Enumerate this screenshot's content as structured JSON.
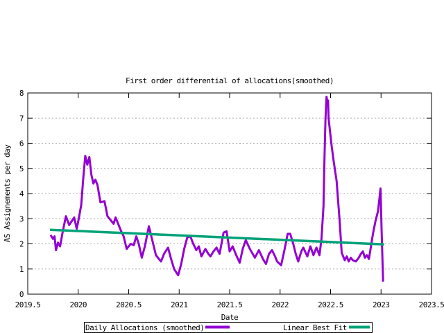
{
  "window": {
    "background": "#ffffff"
  },
  "colors": {
    "daily_allocations": "#9400d3",
    "linear_fit": "#00a278",
    "grid": "#a8a8a8",
    "border": "#000000",
    "text": "#000000"
  },
  "legend": {
    "items": [
      {
        "label": "Daily Allocations (smoothed)",
        "color": "#9400d3"
      },
      {
        "label": "Linear Best Fit",
        "color": "#00a278"
      }
    ]
  },
  "chart_data": {
    "type": "line",
    "title": "First order differential of allocations(smoothed)",
    "xlabel": "Date",
    "ylabel": "AS Assignements per day",
    "xlim": [
      2019.5,
      2023.5
    ],
    "ylim": [
      0,
      8
    ],
    "x_ticks": [
      2019.5,
      2020,
      2020.5,
      2021,
      2021.5,
      2022,
      2022.5,
      2023,
      2023.5
    ],
    "x_tick_labels": [
      "2019.5",
      "2020",
      "2020.5",
      "2021",
      "2021.5",
      "2022",
      "2022.5",
      "2023",
      "2023.5"
    ],
    "y_ticks": [
      0,
      1,
      2,
      3,
      4,
      5,
      6,
      7,
      8
    ],
    "y_tick_labels": [
      "0",
      "1",
      "2",
      "3",
      "4",
      "5",
      "6",
      "7",
      "8"
    ],
    "grid": "horizontal dotted gridlines at y=1..7, mirrored inward ticks on all borders",
    "legend_position": "boxed legend centered below x-axis label",
    "series": [
      {
        "name": "Daily Allocations (smoothed)",
        "color": "#9400d3",
        "points": [
          [
            2019.727,
            2.35
          ],
          [
            2019.75,
            2.2
          ],
          [
            2019.765,
            2.3
          ],
          [
            2019.78,
            1.75
          ],
          [
            2019.8,
            2.05
          ],
          [
            2019.82,
            1.9
          ],
          [
            2019.845,
            2.45
          ],
          [
            2019.878,
            3.1
          ],
          [
            2019.91,
            2.75
          ],
          [
            2019.935,
            2.9
          ],
          [
            2019.96,
            3.05
          ],
          [
            2019.985,
            2.6
          ],
          [
            2020.005,
            3.0
          ],
          [
            2020.03,
            3.55
          ],
          [
            2020.05,
            4.6
          ],
          [
            2020.07,
            5.5
          ],
          [
            2020.09,
            5.15
          ],
          [
            2020.11,
            5.45
          ],
          [
            2020.13,
            4.75
          ],
          [
            2020.15,
            4.4
          ],
          [
            2020.17,
            4.55
          ],
          [
            2020.19,
            4.35
          ],
          [
            2020.22,
            3.65
          ],
          [
            2020.26,
            3.7
          ],
          [
            2020.29,
            3.1
          ],
          [
            2020.32,
            2.95
          ],
          [
            2020.35,
            2.8
          ],
          [
            2020.37,
            3.05
          ],
          [
            2020.4,
            2.75
          ],
          [
            2020.42,
            2.55
          ],
          [
            2020.45,
            2.3
          ],
          [
            2020.48,
            1.8
          ],
          [
            2020.52,
            2.0
          ],
          [
            2020.55,
            1.95
          ],
          [
            2020.575,
            2.3
          ],
          [
            2020.6,
            2.0
          ],
          [
            2020.63,
            1.45
          ],
          [
            2020.66,
            1.9
          ],
          [
            2020.7,
            2.7
          ],
          [
            2020.73,
            2.2
          ],
          [
            2020.77,
            1.55
          ],
          [
            2020.8,
            1.4
          ],
          [
            2020.82,
            1.3
          ],
          [
            2020.85,
            1.6
          ],
          [
            2020.89,
            1.85
          ],
          [
            2020.92,
            1.4
          ],
          [
            2020.95,
            1.0
          ],
          [
            2020.99,
            0.75
          ],
          [
            2021.02,
            1.2
          ],
          [
            2021.05,
            1.8
          ],
          [
            2021.08,
            2.25
          ],
          [
            2021.11,
            2.3
          ],
          [
            2021.14,
            2.0
          ],
          [
            2021.17,
            1.75
          ],
          [
            2021.195,
            1.9
          ],
          [
            2021.22,
            1.5
          ],
          [
            2021.26,
            1.8
          ],
          [
            2021.29,
            1.6
          ],
          [
            2021.31,
            1.5
          ],
          [
            2021.34,
            1.7
          ],
          [
            2021.37,
            1.85
          ],
          [
            2021.4,
            1.6
          ],
          [
            2021.44,
            2.45
          ],
          [
            2021.47,
            2.5
          ],
          [
            2021.5,
            1.7
          ],
          [
            2021.53,
            1.9
          ],
          [
            2021.56,
            1.6
          ],
          [
            2021.6,
            1.25
          ],
          [
            2021.63,
            1.8
          ],
          [
            2021.66,
            2.15
          ],
          [
            2021.7,
            1.8
          ],
          [
            2021.75,
            1.45
          ],
          [
            2021.79,
            1.75
          ],
          [
            2021.83,
            1.4
          ],
          [
            2021.86,
            1.2
          ],
          [
            2021.89,
            1.6
          ],
          [
            2021.92,
            1.75
          ],
          [
            2021.95,
            1.5
          ],
          [
            2021.97,
            1.3
          ],
          [
            2022.01,
            1.15
          ],
          [
            2022.04,
            1.7
          ],
          [
            2022.075,
            2.4
          ],
          [
            2022.1,
            2.4
          ],
          [
            2022.13,
            2.0
          ],
          [
            2022.155,
            1.6
          ],
          [
            2022.18,
            1.3
          ],
          [
            2022.21,
            1.7
          ],
          [
            2022.23,
            1.85
          ],
          [
            2022.27,
            1.5
          ],
          [
            2022.3,
            1.9
          ],
          [
            2022.33,
            1.55
          ],
          [
            2022.36,
            1.85
          ],
          [
            2022.39,
            1.55
          ],
          [
            2022.41,
            2.2
          ],
          [
            2022.43,
            3.5
          ],
          [
            2022.44,
            5.5
          ],
          [
            2022.45,
            7.0
          ],
          [
            2022.46,
            7.85
          ],
          [
            2022.47,
            7.6
          ],
          [
            2022.475,
            7.7
          ],
          [
            2022.48,
            7.0
          ],
          [
            2022.49,
            6.65
          ],
          [
            2022.51,
            5.9
          ],
          [
            2022.53,
            5.3
          ],
          [
            2022.56,
            4.5
          ],
          [
            2022.575,
            3.7
          ],
          [
            2022.59,
            2.9
          ],
          [
            2022.61,
            1.65
          ],
          [
            2022.64,
            1.35
          ],
          [
            2022.66,
            1.5
          ],
          [
            2022.68,
            1.3
          ],
          [
            2022.7,
            1.45
          ],
          [
            2022.72,
            1.35
          ],
          [
            2022.75,
            1.3
          ],
          [
            2022.78,
            1.45
          ],
          [
            2022.8,
            1.6
          ],
          [
            2022.82,
            1.7
          ],
          [
            2022.84,
            1.45
          ],
          [
            2022.86,
            1.55
          ],
          [
            2022.88,
            1.4
          ],
          [
            2022.9,
            1.9
          ],
          [
            2022.92,
            2.4
          ],
          [
            2022.945,
            2.9
          ],
          [
            2022.97,
            3.3
          ],
          [
            2022.995,
            4.2
          ],
          [
            2023.005,
            2.6
          ],
          [
            2023.02,
            0.5
          ]
        ]
      },
      {
        "name": "Linear Best Fit",
        "color": "#00a278",
        "points": [
          [
            2019.72,
            2.56
          ],
          [
            2023.03,
            1.98
          ]
        ]
      }
    ]
  }
}
